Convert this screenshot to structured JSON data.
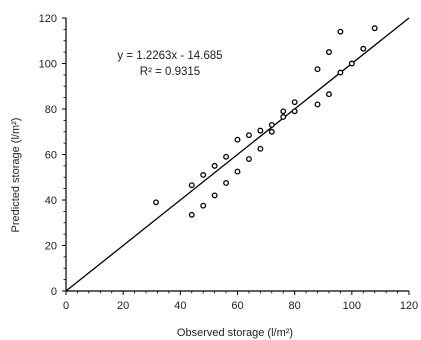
{
  "chart_data": {
    "type": "scatter",
    "title": "",
    "xlabel": "Observed storage (l/m²)",
    "ylabel": "Predicted storage (l/m²)",
    "xlim": [
      0,
      120
    ],
    "ylim": [
      0,
      120
    ],
    "x_ticks": [
      0,
      20,
      40,
      60,
      80,
      100,
      120
    ],
    "y_ticks": [
      0,
      20,
      40,
      60,
      80,
      100,
      120
    ],
    "x_tick_labels": [
      "0",
      "20",
      "40",
      "60",
      "80",
      "100",
      "120"
    ],
    "y_tick_labels": [
      "0",
      "20",
      "40",
      "60",
      "80",
      "100",
      "120"
    ],
    "grid": false,
    "legend": "none",
    "annotations": {
      "equation": "y = 1.2263x - 14.685",
      "r_squared": "R² = 0.9315"
    },
    "fit_line": {
      "from": [
        0,
        0
      ],
      "to": [
        120,
        120
      ]
    },
    "marker_color": "#000000",
    "series": [
      {
        "points": [
          {
            "x": 31.5,
            "y": 39
          },
          {
            "x": 44,
            "y": 33.5
          },
          {
            "x": 44,
            "y": 46.5
          },
          {
            "x": 48,
            "y": 37.5
          },
          {
            "x": 48,
            "y": 51
          },
          {
            "x": 52,
            "y": 42
          },
          {
            "x": 52,
            "y": 55
          },
          {
            "x": 56,
            "y": 47.5
          },
          {
            "x": 56,
            "y": 59
          },
          {
            "x": 60,
            "y": 52.5
          },
          {
            "x": 60,
            "y": 66.5
          },
          {
            "x": 64,
            "y": 58
          },
          {
            "x": 64,
            "y": 68.5
          },
          {
            "x": 68,
            "y": 62.5
          },
          {
            "x": 68,
            "y": 70.5
          },
          {
            "x": 72,
            "y": 70
          },
          {
            "x": 72,
            "y": 73
          },
          {
            "x": 76,
            "y": 76.5
          },
          {
            "x": 76,
            "y": 79
          },
          {
            "x": 80,
            "y": 79
          },
          {
            "x": 80,
            "y": 83
          },
          {
            "x": 88,
            "y": 82
          },
          {
            "x": 88,
            "y": 97.5
          },
          {
            "x": 92,
            "y": 86.5
          },
          {
            "x": 92,
            "y": 105
          },
          {
            "x": 96,
            "y": 96
          },
          {
            "x": 96,
            "y": 114
          },
          {
            "x": 100,
            "y": 100
          },
          {
            "x": 104,
            "y": 106.5
          },
          {
            "x": 108,
            "y": 115.5
          }
        ]
      }
    ]
  }
}
